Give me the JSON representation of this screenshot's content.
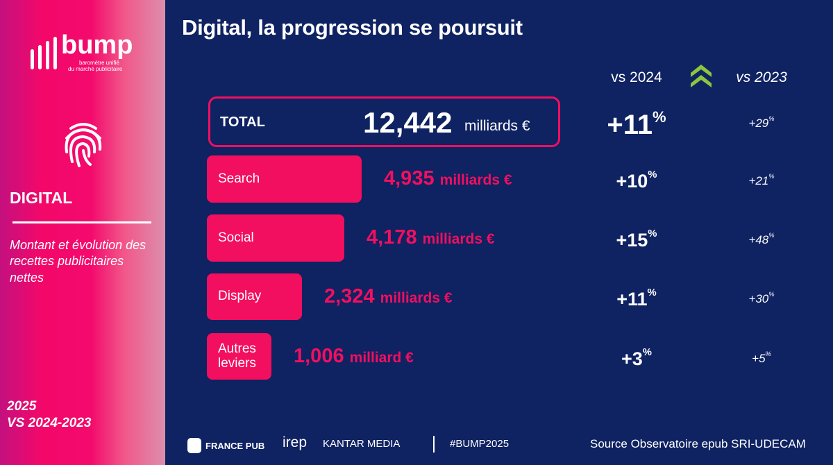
{
  "title": "Digital, la progression se poursuit",
  "left": {
    "logo_text": "bump",
    "logo_sub1": "baromètre unifié",
    "logo_sub2": "du marché publicitaire",
    "section": "DIGITAL",
    "description": "Montant et évolution des recettes publicitaires nettes",
    "period1": "2025",
    "period2": "VS 2024-2023"
  },
  "colors": {
    "accent": "#f20f5f",
    "background": "#0f2262",
    "chevron": "#8cc63f"
  },
  "icons": {
    "fingerprint": "fingerprint-icon",
    "chevron": "double-chevron-up-icon"
  },
  "headers": {
    "vs2024": "vs 2024",
    "vs2023": "vs 2023"
  },
  "total": {
    "label": "TOTAL",
    "value": "12,442",
    "unit": "milliards €",
    "vs2024": "+11",
    "vs2023": "+29"
  },
  "chart_data": {
    "type": "bar",
    "unit": "milliards €",
    "categories": [
      "Search",
      "Social",
      "Display",
      "Autres leviers"
    ],
    "values": [
      4.935,
      4.178,
      2.324,
      1.006
    ],
    "value_labels": [
      "4,935",
      "4,178",
      "2,324",
      "1,006"
    ],
    "units": [
      "milliards €",
      "milliards €",
      "milliards €",
      "milliard €"
    ],
    "vs2024": [
      "+10",
      "+15",
      "+11",
      "+3"
    ],
    "vs2023": [
      "+21",
      "+48",
      "+30",
      "+5"
    ],
    "percent_sign": "%"
  },
  "footer": {
    "francepub": "FRANCE PUB",
    "irep": "irep",
    "kantar": "KANTAR MEDIA",
    "hashtag": "#BUMP2025",
    "source": "Source Observatoire epub SRI-UDECAM"
  }
}
